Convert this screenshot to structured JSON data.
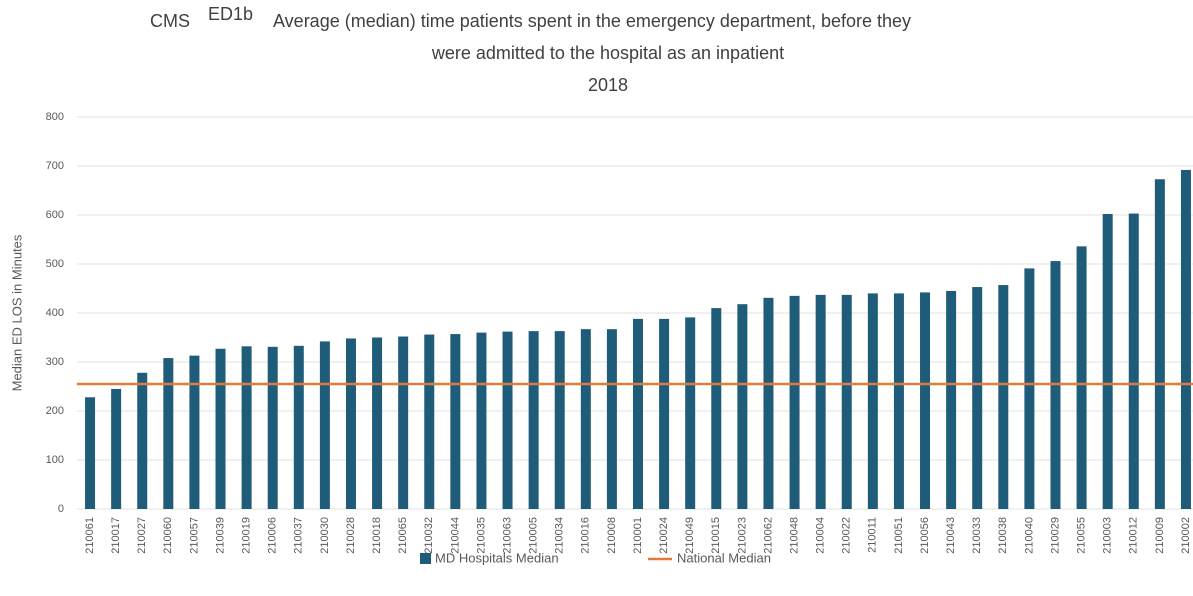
{
  "chart_data": {
    "type": "bar",
    "title": {
      "prefix": "CMS",
      "code": "ED1b",
      "lines": [
        "Average (median) time patients spent in the emergency department, before they",
        "were admitted to the hospital as an inpatient",
        "2018"
      ]
    },
    "y_label": "Median ED LOS in Minutes",
    "categories": [
      "210061",
      "210017",
      "210027",
      "210060",
      "210057",
      "210039",
      "210019",
      "210006",
      "210037",
      "210030",
      "210028",
      "210018",
      "210065",
      "210032",
      "210044",
      "210035",
      "210063",
      "210005",
      "210034",
      "210016",
      "210008",
      "210001",
      "210024",
      "210049",
      "210015",
      "210023",
      "210062",
      "210048",
      "210004",
      "210022",
      "210011",
      "210051",
      "210056",
      "210043",
      "210033",
      "210038",
      "210040",
      "210029",
      "210055",
      "210003",
      "210012",
      "210009",
      "210002"
    ],
    "series": [
      {
        "name": "MD Hospitals Median",
        "color": "#1f5c7a",
        "values": [
          228,
          245,
          278,
          308,
          313,
          327,
          332,
          331,
          333,
          342,
          348,
          350,
          352,
          356,
          357,
          360,
          362,
          363,
          363,
          367,
          367,
          388,
          388,
          391,
          410,
          418,
          431,
          435,
          437,
          437,
          440,
          440,
          442,
          445,
          453,
          457,
          491,
          506,
          536,
          602,
          603,
          673,
          692
        ]
      }
    ],
    "reference_line": {
      "name": "National Median",
      "value": 255,
      "color": "#e07b39"
    },
    "ylim": [
      0,
      800
    ],
    "yticks": [
      0,
      100,
      200,
      300,
      400,
      500,
      600,
      700,
      800
    ],
    "grid": true
  }
}
